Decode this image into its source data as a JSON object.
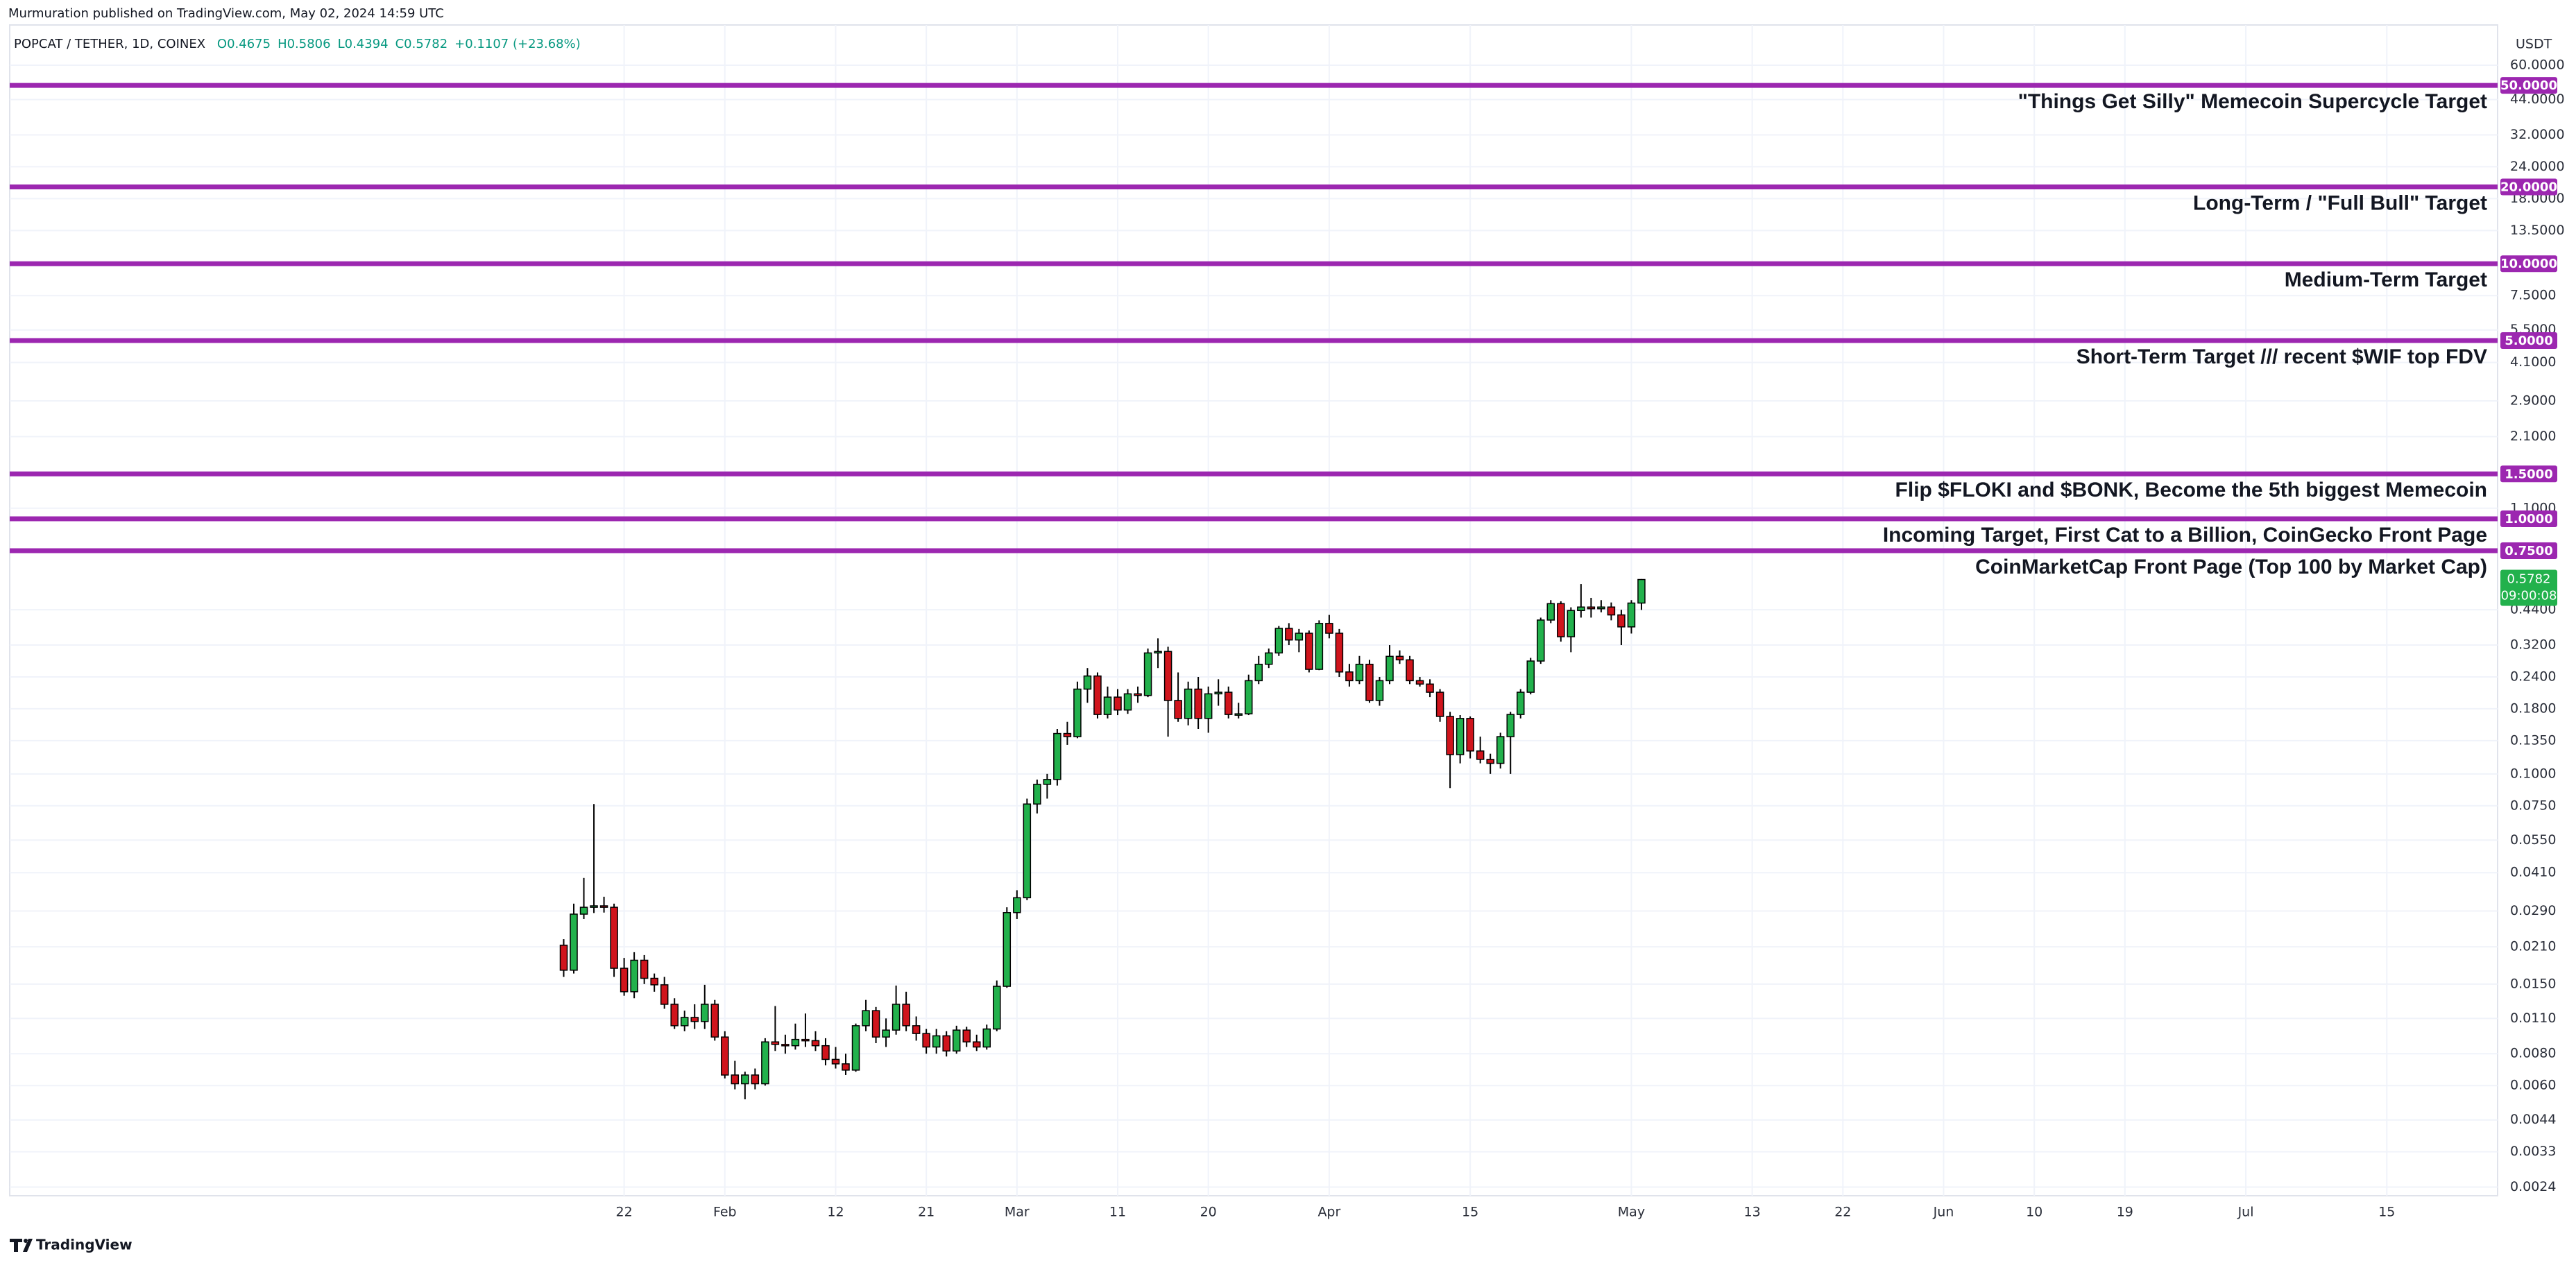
{
  "header": {
    "published": "Murmuration published on TradingView.com, May 02, 2024 14:59 UTC",
    "symbol": "POPCAT / TETHER, 1D, COINEX",
    "ohlc": [
      "O0.4675",
      "H0.5806",
      "L0.4394",
      "C0.5782"
    ],
    "change": "+0.1107 (+23.68%)"
  },
  "footer": {
    "brand": "TradingView"
  },
  "chart_data": {
    "type": "candlestick",
    "log_scale": true,
    "grid": true,
    "y_unit": "USDT",
    "up_color": "#22b14c",
    "down_color": "#d0141c",
    "level_color": "#9c27b0",
    "last_price": {
      "label": "0.5782",
      "countdown": "09:00:08"
    },
    "xlim": [
      "2023-11-22",
      "2024-07-26"
    ],
    "xticks": [
      {
        "value": "2024-01-22",
        "label": "22"
      },
      {
        "value": "2024-02-01",
        "label": "Feb"
      },
      {
        "value": "2024-02-12",
        "label": "12"
      },
      {
        "value": "2024-02-21",
        "label": "21"
      },
      {
        "value": "2024-03-01",
        "label": "Mar"
      },
      {
        "value": "2024-03-11",
        "label": "11"
      },
      {
        "value": "2024-03-20",
        "label": "20"
      },
      {
        "value": "2024-04-01",
        "label": "Apr"
      },
      {
        "value": "2024-04-15",
        "label": "15"
      },
      {
        "value": "2024-05-01",
        "label": "May"
      },
      {
        "value": "2024-05-13",
        "label": "13"
      },
      {
        "value": "2024-05-22",
        "label": "22"
      },
      {
        "value": "2024-06-01",
        "label": "Jun"
      },
      {
        "value": "2024-06-10",
        "label": "10"
      },
      {
        "value": "2024-06-19",
        "label": "19"
      },
      {
        "value": "2024-07-01",
        "label": "Jul"
      },
      {
        "value": "2024-07-15",
        "label": "15"
      }
    ],
    "ylim": [
      0.00222,
      82.6
    ],
    "yticks": [
      {
        "value": 60,
        "label": "60.0000"
      },
      {
        "value": 44,
        "label": "44.0000"
      },
      {
        "value": 32,
        "label": "32.0000"
      },
      {
        "value": 24,
        "label": "24.0000"
      },
      {
        "value": 18,
        "label": "18.0000"
      },
      {
        "value": 13.5,
        "label": "13.5000"
      },
      {
        "value": 7.5,
        "label": "7.5000"
      },
      {
        "value": 5.5,
        "label": "5.5000"
      },
      {
        "value": 4.1,
        "label": "4.1000"
      },
      {
        "value": 2.9,
        "label": "2.9000"
      },
      {
        "value": 2.1,
        "label": "2.1000"
      },
      {
        "value": 1.1,
        "label": "1.1000"
      },
      {
        "value": 0.44,
        "label": "0.4400"
      },
      {
        "value": 0.32,
        "label": "0.3200"
      },
      {
        "value": 0.24,
        "label": "0.2400"
      },
      {
        "value": 0.18,
        "label": "0.1800"
      },
      {
        "value": 0.135,
        "label": "0.1350"
      },
      {
        "value": 0.1,
        "label": "0.1000"
      },
      {
        "value": 0.075,
        "label": "0.0750"
      },
      {
        "value": 0.055,
        "label": "0.0550"
      },
      {
        "value": 0.041,
        "label": "0.0410"
      },
      {
        "value": 0.029,
        "label": "0.0290"
      },
      {
        "value": 0.021,
        "label": "0.0210"
      },
      {
        "value": 0.015,
        "label": "0.0150"
      },
      {
        "value": 0.011,
        "label": "0.0110"
      },
      {
        "value": 0.008,
        "label": "0.0080"
      },
      {
        "value": 0.006,
        "label": "0.0060"
      },
      {
        "value": 0.0044,
        "label": "0.0044"
      },
      {
        "value": 0.0033,
        "label": "0.0033"
      },
      {
        "value": 0.0024,
        "label": "0.0024"
      }
    ],
    "levels": [
      {
        "value": 50,
        "label": "50.0000",
        "text": "\"Things Get Silly\" Memecoin Supercycle Target"
      },
      {
        "value": 20,
        "label": "20.0000",
        "text": "Long-Term / \"Full Bull\" Target"
      },
      {
        "value": 10,
        "label": "10.0000",
        "text": "Medium-Term Target"
      },
      {
        "value": 5,
        "label": "5.0000",
        "text": "Short-Term Target /// recent $WIF top FDV"
      },
      {
        "value": 1.5,
        "label": "1.5000",
        "text": "Flip $FLOKI and $BONK, Become the 5th biggest Memecoin"
      },
      {
        "value": 1,
        "label": "1.0000",
        "text": "Incoming Target, First Cat to a Billion, CoinGecko Front Page"
      },
      {
        "value": 0.75,
        "label": "0.7500",
        "text": "CoinMarketCap Front Page (Top 100 by Market Cap)"
      }
    ],
    "x": [
      "2024-01-16",
      "2024-01-17",
      "2024-01-18",
      "2024-01-19",
      "2024-01-20",
      "2024-01-21",
      "2024-01-22",
      "2024-01-23",
      "2024-01-24",
      "2024-01-25",
      "2024-01-26",
      "2024-01-27",
      "2024-01-28",
      "2024-01-29",
      "2024-01-30",
      "2024-01-31",
      "2024-02-01",
      "2024-02-02",
      "2024-02-03",
      "2024-02-04",
      "2024-02-05",
      "2024-02-06",
      "2024-02-07",
      "2024-02-08",
      "2024-02-09",
      "2024-02-10",
      "2024-02-11",
      "2024-02-12",
      "2024-02-13",
      "2024-02-14",
      "2024-02-15",
      "2024-02-16",
      "2024-02-17",
      "2024-02-18",
      "2024-02-19",
      "2024-02-20",
      "2024-02-21",
      "2024-02-22",
      "2024-02-23",
      "2024-02-24",
      "2024-02-25",
      "2024-02-26",
      "2024-02-27",
      "2024-02-28",
      "2024-02-29",
      "2024-03-01",
      "2024-03-02",
      "2024-03-03",
      "2024-03-04",
      "2024-03-05",
      "2024-03-06",
      "2024-03-07",
      "2024-03-08",
      "2024-03-09",
      "2024-03-10",
      "2024-03-11",
      "2024-03-12",
      "2024-03-13",
      "2024-03-14",
      "2024-03-15",
      "2024-03-16",
      "2024-03-17",
      "2024-03-18",
      "2024-03-19",
      "2024-03-20",
      "2024-03-21",
      "2024-03-22",
      "2024-03-23",
      "2024-03-24",
      "2024-03-25",
      "2024-03-26",
      "2024-03-27",
      "2024-03-28",
      "2024-03-29",
      "2024-03-30",
      "2024-03-31",
      "2024-04-01",
      "2024-04-02",
      "2024-04-03",
      "2024-04-04",
      "2024-04-05",
      "2024-04-06",
      "2024-04-07",
      "2024-04-08",
      "2024-04-09",
      "2024-04-10",
      "2024-04-11",
      "2024-04-12",
      "2024-04-13",
      "2024-04-14",
      "2024-04-15",
      "2024-04-16",
      "2024-04-17",
      "2024-04-18",
      "2024-04-19",
      "2024-04-20",
      "2024-04-21",
      "2024-04-22",
      "2024-04-23",
      "2024-04-24",
      "2024-04-25",
      "2024-04-26",
      "2024-04-27",
      "2024-04-28",
      "2024-04-29",
      "2024-04-30",
      "2024-05-01",
      "2024-05-02"
    ],
    "open": [
      0.0213,
      0.017,
      0.0282,
      0.03,
      0.0304,
      0.03,
      0.0173,
      0.014,
      0.0186,
      0.0158,
      0.0149,
      0.0125,
      0.0103,
      0.0111,
      0.0107,
      0.0125,
      0.0093,
      0.0066,
      0.0061,
      0.0066,
      0.0061,
      0.0089,
      0.0087,
      0.0086,
      0.0091,
      0.009,
      0.0086,
      0.0076,
      0.0073,
      0.0069,
      0.0103,
      0.0118,
      0.0093,
      0.0099,
      0.0125,
      0.0103,
      0.0096,
      0.0085,
      0.0094,
      0.0082,
      0.0099,
      0.0089,
      0.0085,
      0.01,
      0.0147,
      0.0286,
      0.0327,
      0.0762,
      0.091,
      0.0951,
      0.144,
      0.14,
      0.215,
      0.242,
      0.171,
      0.2,
      0.178,
      0.206,
      0.203,
      0.298,
      0.302,
      0.194,
      0.165,
      0.215,
      0.165,
      0.206,
      0.209,
      0.171,
      0.172,
      0.232,
      0.269,
      0.298,
      0.372,
      0.335,
      0.356,
      0.257,
      0.389,
      0.356,
      0.251,
      0.232,
      0.269,
      0.194,
      0.232,
      0.289,
      0.28,
      0.232,
      0.225,
      0.209,
      0.168,
      0.119,
      0.165,
      0.123,
      0.114,
      0.11,
      0.14,
      0.171,
      0.209,
      0.277,
      0.401,
      0.465,
      0.345,
      0.437,
      0.451,
      0.444,
      0.451,
      0.42,
      0.377,
      0.4675
    ],
    "high": [
      0.0225,
      0.031,
      0.0391,
      0.0762,
      0.033,
      0.031,
      0.019,
      0.02,
      0.0195,
      0.0165,
      0.016,
      0.0132,
      0.0118,
      0.0125,
      0.0149,
      0.013,
      0.0098,
      0.0075,
      0.0068,
      0.007,
      0.0092,
      0.0123,
      0.0095,
      0.0105,
      0.0115,
      0.0098,
      0.0092,
      0.0085,
      0.008,
      0.0105,
      0.013,
      0.0122,
      0.011,
      0.0148,
      0.014,
      0.0112,
      0.01,
      0.01,
      0.0098,
      0.0103,
      0.0102,
      0.0095,
      0.0104,
      0.0155,
      0.03,
      0.035,
      0.08,
      0.095,
      0.1,
      0.15,
      0.16,
      0.23,
      0.26,
      0.25,
      0.22,
      0.215,
      0.215,
      0.22,
      0.31,
      0.34,
      0.315,
      0.25,
      0.23,
      0.24,
      0.22,
      0.235,
      0.22,
      0.19,
      0.245,
      0.29,
      0.31,
      0.38,
      0.39,
      0.37,
      0.365,
      0.4,
      0.42,
      0.37,
      0.27,
      0.29,
      0.28,
      0.24,
      0.32,
      0.305,
      0.29,
      0.24,
      0.235,
      0.215,
      0.175,
      0.17,
      0.168,
      0.14,
      0.12,
      0.145,
      0.175,
      0.215,
      0.285,
      0.41,
      0.48,
      0.475,
      0.45,
      0.555,
      0.49,
      0.48,
      0.47,
      0.44,
      0.48,
      0.5806
    ],
    "low": [
      0.016,
      0.0165,
      0.027,
      0.0285,
      0.0286,
      0.016,
      0.0135,
      0.0132,
      0.015,
      0.014,
      0.012,
      0.01,
      0.0098,
      0.01,
      0.01,
      0.009,
      0.0064,
      0.0058,
      0.0053,
      0.0058,
      0.006,
      0.0082,
      0.008,
      0.0083,
      0.0085,
      0.0082,
      0.0072,
      0.007,
      0.0066,
      0.0068,
      0.0098,
      0.0088,
      0.0085,
      0.0095,
      0.0098,
      0.009,
      0.008,
      0.008,
      0.0078,
      0.008,
      0.0085,
      0.0082,
      0.0083,
      0.0098,
      0.0145,
      0.027,
      0.032,
      0.07,
      0.08,
      0.09,
      0.13,
      0.138,
      0.19,
      0.165,
      0.165,
      0.17,
      0.172,
      0.19,
      0.2,
      0.26,
      0.14,
      0.16,
      0.155,
      0.15,
      0.145,
      0.185,
      0.165,
      0.165,
      0.17,
      0.225,
      0.26,
      0.29,
      0.32,
      0.3,
      0.25,
      0.255,
      0.34,
      0.24,
      0.22,
      0.225,
      0.19,
      0.185,
      0.225,
      0.27,
      0.225,
      0.22,
      0.2,
      0.16,
      0.088,
      0.11,
      0.115,
      0.11,
      0.1,
      0.105,
      0.1,
      0.165,
      0.205,
      0.27,
      0.39,
      0.33,
      0.3,
      0.41,
      0.41,
      0.43,
      0.4,
      0.32,
      0.355,
      0.4394
    ],
    "close": [
      0.017,
      0.0282,
      0.03,
      0.0304,
      0.03,
      0.0173,
      0.014,
      0.0186,
      0.0158,
      0.0149,
      0.0125,
      0.0103,
      0.0111,
      0.0107,
      0.0125,
      0.0093,
      0.0066,
      0.0061,
      0.0066,
      0.0061,
      0.0089,
      0.0087,
      0.0086,
      0.0091,
      0.009,
      0.0086,
      0.0076,
      0.0073,
      0.0069,
      0.0103,
      0.0118,
      0.0093,
      0.0099,
      0.0125,
      0.0103,
      0.0096,
      0.0085,
      0.0094,
      0.0082,
      0.0099,
      0.0089,
      0.0085,
      0.01,
      0.0147,
      0.0286,
      0.0327,
      0.0762,
      0.091,
      0.0951,
      0.144,
      0.14,
      0.215,
      0.242,
      0.171,
      0.2,
      0.178,
      0.206,
      0.203,
      0.298,
      0.302,
      0.194,
      0.165,
      0.215,
      0.165,
      0.206,
      0.209,
      0.171,
      0.172,
      0.232,
      0.269,
      0.298,
      0.372,
      0.335,
      0.356,
      0.257,
      0.389,
      0.356,
      0.251,
      0.232,
      0.269,
      0.194,
      0.232,
      0.289,
      0.28,
      0.232,
      0.225,
      0.209,
      0.168,
      0.119,
      0.165,
      0.123,
      0.114,
      0.11,
      0.14,
      0.171,
      0.209,
      0.277,
      0.401,
      0.465,
      0.345,
      0.437,
      0.451,
      0.444,
      0.451,
      0.42,
      0.377,
      0.4675,
      0.5782
    ]
  }
}
